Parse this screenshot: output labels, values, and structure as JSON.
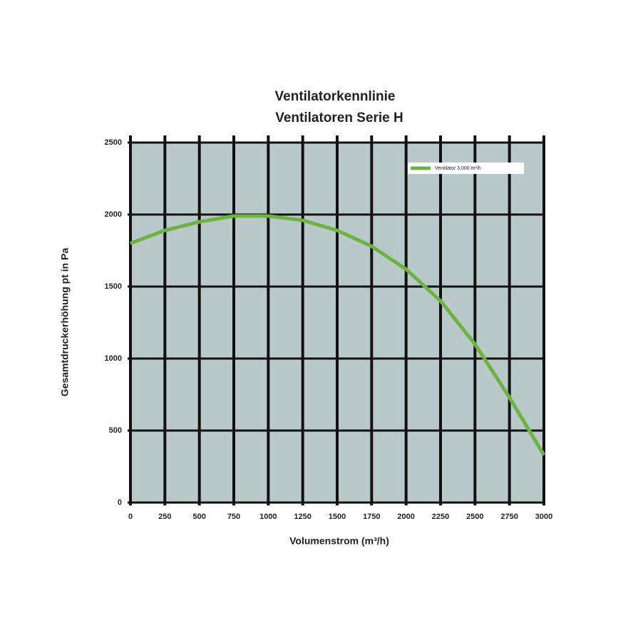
{
  "chart_data": {
    "type": "line",
    "title": "Ventilatorkennlinie",
    "subtitle": "Ventilatoren Serie H",
    "x_label": "Volumenstrom (m³/h)",
    "y_label": "Gesamtdruckerhöhung pt in Pa",
    "x": [
      0,
      250,
      500,
      750,
      1000,
      1250,
      1500,
      1750,
      2000,
      2250,
      2500,
      2750,
      3000
    ],
    "series": [
      {
        "name": "Ventilator 3.000 m³/h",
        "color": "#6db33f",
        "values": [
          1800,
          1890,
          1950,
          1990,
          1990,
          1960,
          1890,
          1780,
          1620,
          1400,
          1100,
          730,
          330
        ]
      }
    ],
    "xlim": [
      0,
      3000
    ],
    "xticks": [
      0,
      250,
      500,
      750,
      1000,
      1250,
      1500,
      1750,
      2000,
      2250,
      2500,
      2750,
      3000
    ],
    "ylim": [
      0,
      2500
    ],
    "yticks": [
      0,
      500,
      1000,
      1500,
      2000,
      2500
    ],
    "grid": true,
    "legend": "upper right",
    "plot_background": "#b9c9c9"
  }
}
